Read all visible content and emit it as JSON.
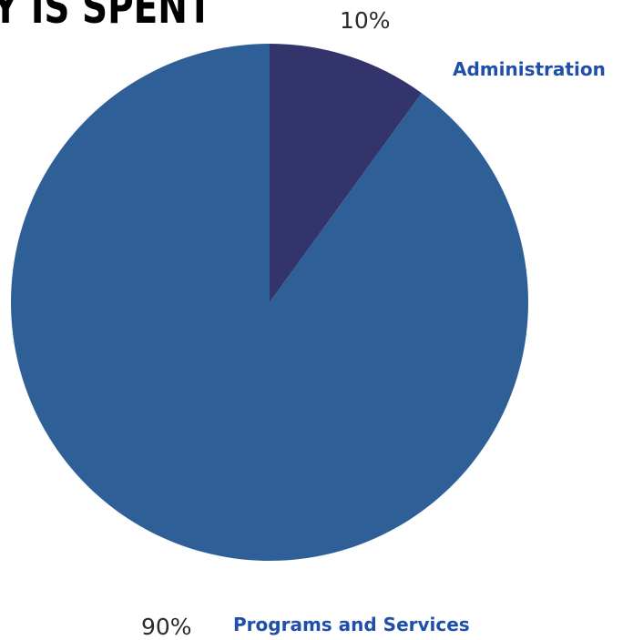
{
  "chart_data": {
    "type": "pie",
    "title": "Y IS SPENT",
    "slices": [
      {
        "label": "Administration",
        "value": 10,
        "value_label": "10%",
        "color": "#32346b"
      },
      {
        "label": "Programs and Services",
        "value": 90,
        "value_label": "90%",
        "color": "#2e5f96"
      }
    ],
    "label_color": "#1f4fa8",
    "legend": "none"
  }
}
